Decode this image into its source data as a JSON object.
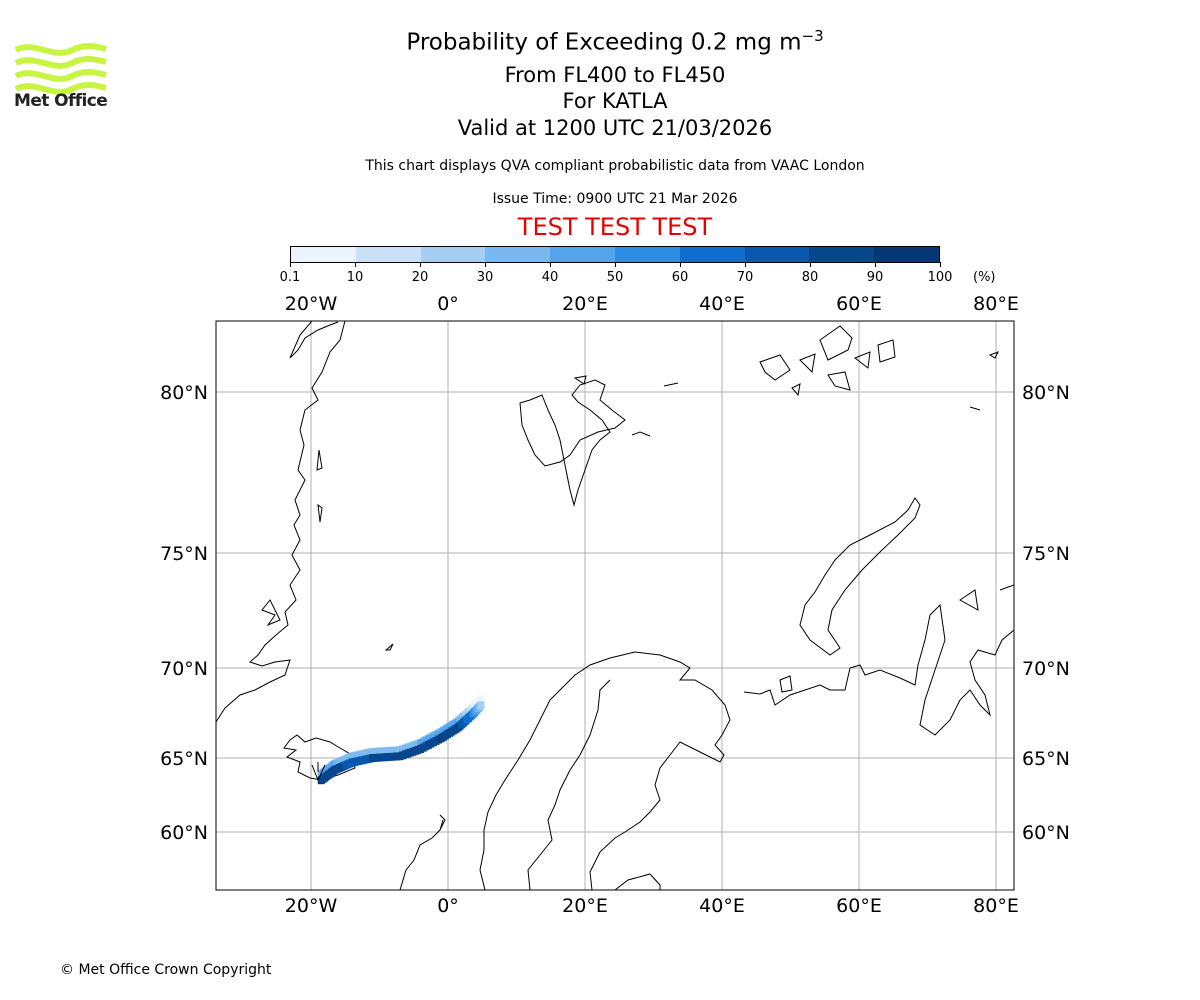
{
  "logo": {
    "text": "Met Office",
    "color": "#c8f542"
  },
  "title": {
    "line1_prefix": "Probability of Exceeding 0.2 mg m",
    "line1_exponent": "−3",
    "line2": "From FL400 to FL450",
    "line3": "For KATLA",
    "line4": "Valid at 1200 UTC 21/03/2026"
  },
  "subtitle": "This chart displays QVA compliant probabilistic data from VAAC London",
  "issue_time": "Issue Time: 0900 UTC 21 Mar 2026",
  "test_banner": "TEST TEST TEST",
  "test_color": "#e60000",
  "colorbar": {
    "labels": [
      "0.1",
      "10",
      "20",
      "30",
      "40",
      "50",
      "60",
      "70",
      "80",
      "90",
      "100"
    ],
    "units": "(%)",
    "colors": [
      "#ebf4fc",
      "#c9e1f6",
      "#a4cef3",
      "#7ab9f0",
      "#52a5ec",
      "#2d8ee6",
      "#0e6fcf",
      "#0858ae",
      "#07468d",
      "#063674"
    ]
  },
  "map": {
    "lon_labels": [
      "20°W",
      "0°",
      "20°E",
      "40°E",
      "60°E",
      "80°E"
    ],
    "lat_labels": [
      "80°N",
      "75°N",
      "70°N",
      "65°N",
      "60°N"
    ],
    "volcano": "KATLA",
    "plume": [
      {
        "lon": -18.5,
        "lat": 63.5,
        "prob": 90
      },
      {
        "lon": -16.5,
        "lat": 64.2,
        "prob": 85
      },
      {
        "lon": -14,
        "lat": 64.7,
        "prob": 75
      },
      {
        "lon": -11,
        "lat": 65.0,
        "prob": 80
      },
      {
        "lon": -7,
        "lat": 65.1,
        "prob": 80
      },
      {
        "lon": -4,
        "lat": 65.5,
        "prob": 85
      },
      {
        "lon": -1,
        "lat": 66.1,
        "prob": 90
      },
      {
        "lon": 1.5,
        "lat": 66.7,
        "prob": 85
      },
      {
        "lon": 3.5,
        "lat": 67.4,
        "prob": 60
      },
      {
        "lon": 5,
        "lat": 68.0,
        "prob": 25
      }
    ]
  },
  "copyright": "© Met Office Crown Copyright"
}
